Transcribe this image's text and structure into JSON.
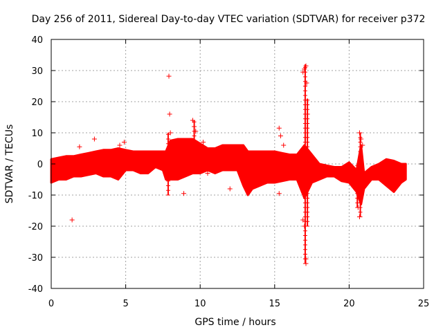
{
  "chart_data": {
    "type": "scatter",
    "title": "Day 256 of 2011, Sidereal Day-to-day VTEC variation (SDTVAR) for receiver p372",
    "xlabel": "GPS time / hours",
    "ylabel": "SDTVAR / TECUs",
    "xlim": [
      0,
      25
    ],
    "ylim": [
      -40,
      40
    ],
    "x_ticks": [
      0,
      5,
      10,
      15,
      20,
      25
    ],
    "y_ticks": [
      -40,
      -30,
      -20,
      -10,
      0,
      10,
      20,
      30,
      40
    ],
    "x_tick_labels": [
      "0",
      "5",
      "10",
      "15",
      "20",
      "25"
    ],
    "y_tick_labels": [
      "-40",
      "-30",
      "-20",
      "-10",
      "0",
      "10",
      "20",
      "30",
      "40"
    ],
    "grid": true,
    "marker": "+",
    "color": "#ff0000",
    "series": [
      {
        "name": "SDTVAR",
        "band": {
          "x": [
            0,
            0.5,
            1,
            1.5,
            2,
            2.5,
            3,
            3.5,
            4,
            4.5,
            5,
            5.5,
            6,
            6.5,
            7,
            7.5,
            7.7,
            8,
            8.5,
            9,
            9.5,
            10,
            10.5,
            11,
            11.5,
            12,
            12.5,
            12.9,
            13.2,
            13.5,
            14,
            14.5,
            15,
            15.5,
            16,
            16.5,
            17,
            17.5,
            18,
            18.5,
            19,
            19.5,
            20,
            20.5,
            20.8,
            21,
            21.5,
            22,
            22.5,
            23,
            23.5,
            23.8
          ],
          "upper": [
            1.5,
            2,
            2.5,
            2.5,
            3,
            3.5,
            4,
            4.5,
            4.5,
            5,
            4.5,
            4,
            4,
            4,
            4,
            4,
            4,
            7.5,
            8,
            8,
            8,
            6.5,
            5,
            5,
            6,
            6,
            6,
            6,
            4,
            4,
            4,
            4,
            4,
            3.5,
            3,
            3,
            6,
            3,
            0,
            -0.5,
            -1,
            -1,
            0.5,
            -2,
            6,
            -3,
            -1,
            0,
            1.5,
            1,
            0,
            0
          ],
          "lower": [
            -6,
            -5,
            -5,
            -4,
            -4,
            -3.5,
            -3,
            -4,
            -4,
            -5,
            -2,
            -2,
            -3,
            -3,
            -1,
            -2,
            -5,
            -5,
            -5,
            -4,
            -3,
            -3,
            -2,
            -3,
            -2,
            -2,
            -2,
            -7,
            -10,
            -8,
            -7,
            -6,
            -6,
            -5.5,
            -5,
            -5,
            -11,
            -6,
            -5,
            -4,
            -4,
            -5.5,
            -6,
            -9,
            -13,
            -8,
            -5,
            -5,
            -7,
            -9,
            -6,
            -5
          ]
        },
        "outliers": [
          [
            1.4,
            -18
          ],
          [
            1.9,
            5.5
          ],
          [
            2.9,
            8
          ],
          [
            4.6,
            6
          ],
          [
            4.9,
            7
          ],
          [
            7.9,
            28.2
          ],
          [
            7.95,
            16
          ],
          [
            8.0,
            10
          ],
          [
            8.1,
            7
          ],
          [
            9.5,
            14
          ],
          [
            9.6,
            12
          ],
          [
            9.7,
            10.5
          ],
          [
            10.2,
            7
          ],
          [
            10.5,
            -3
          ],
          [
            8.9,
            -9.5
          ],
          [
            12.0,
            -8
          ],
          [
            15.3,
            11.5
          ],
          [
            15.4,
            9
          ],
          [
            15.6,
            6
          ],
          [
            15.3,
            -9.5
          ],
          [
            16.9,
            29.5
          ],
          [
            17.0,
            30.5
          ],
          [
            17.1,
            31.5
          ],
          [
            17.15,
            26
          ],
          [
            17.2,
            16
          ],
          [
            16.9,
            -18
          ],
          [
            17.0,
            -20
          ],
          [
            17.1,
            -30.5
          ],
          [
            17.1,
            -32
          ],
          [
            20.7,
            10
          ],
          [
            20.8,
            8
          ],
          [
            20.9,
            6
          ],
          [
            20.6,
            -14
          ],
          [
            20.7,
            -17
          ],
          [
            19.8,
            -1
          ]
        ],
        "spikes": [
          {
            "x": 7.85,
            "ymin": -10,
            "ymax": 10
          },
          {
            "x": 9.6,
            "ymin": -3,
            "ymax": 14
          },
          {
            "x": 17.05,
            "ymin": -32,
            "ymax": 32
          },
          {
            "x": 17.2,
            "ymin": -20,
            "ymax": 21
          },
          {
            "x": 20.75,
            "ymin": -17,
            "ymax": 10
          },
          {
            "x": 20.55,
            "ymin": -14,
            "ymax": 0
          }
        ]
      }
    ]
  }
}
